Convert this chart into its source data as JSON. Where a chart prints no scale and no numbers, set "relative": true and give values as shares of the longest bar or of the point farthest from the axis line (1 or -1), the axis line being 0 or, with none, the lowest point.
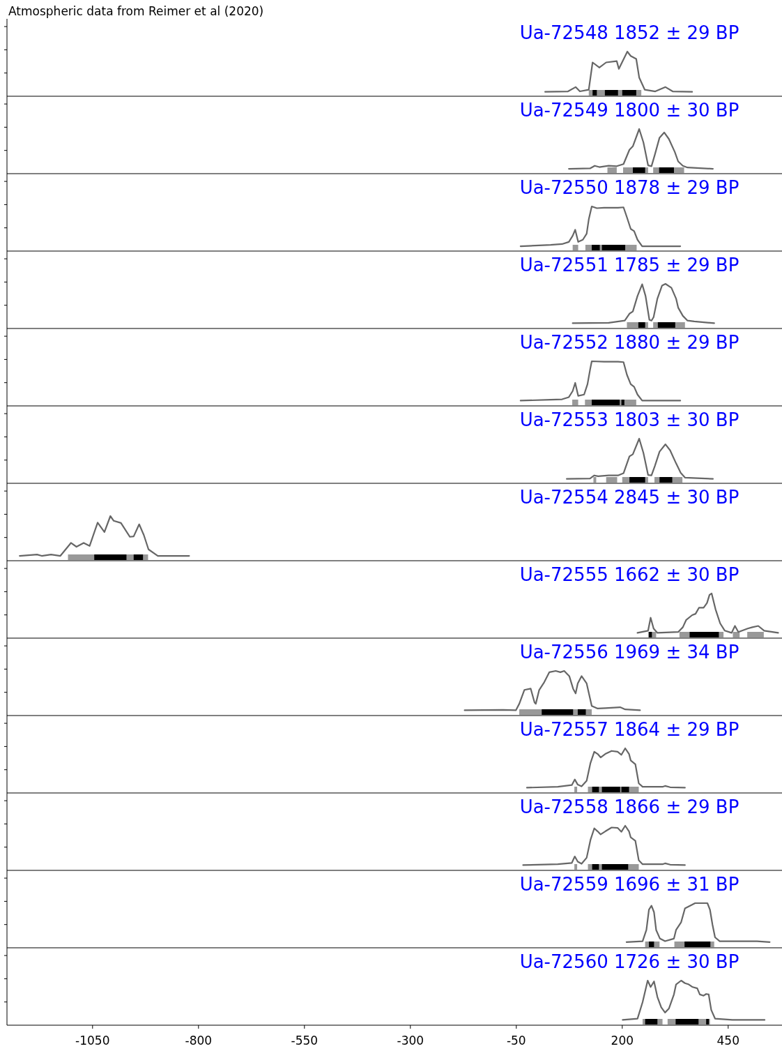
{
  "chart_data": [
    {
      "type": "line",
      "title": "Ua-72548 1852 ± 29 BP",
      "annotations": [
        "Atmospheric data from Reimer et al (2020)"
      ],
      "relative": true,
      "color": "#666666",
      "xlim": [
        -1252,
        577
      ],
      "xticks": [
        -1050,
        -800,
        -550,
        -300,
        -50,
        200,
        450
      ],
      "tick_labels": false,
      "x": [
        18,
        72,
        90,
        100,
        121,
        130,
        146,
        162,
        187,
        192,
        212,
        220,
        233,
        240,
        253,
        278,
        302,
        319,
        365
      ],
      "values": [
        0.07,
        0.08,
        0.18,
        0.08,
        0.12,
        0.75,
        0.63,
        0.75,
        0.78,
        0.6,
        1,
        0.9,
        0.83,
        0.4,
        0.12,
        0.08,
        0.18,
        0.08,
        0.07
      ],
      "bands": [
        {
          "axis": "x",
          "from": 121,
          "to": 245,
          "color": "#999999"
        },
        {
          "axis": "x",
          "from": 130,
          "to": 140,
          "color": "#000000"
        },
        {
          "axis": "x",
          "from": 159,
          "to": 190,
          "color": "#000000"
        },
        {
          "axis": "x",
          "from": 200,
          "to": 233,
          "color": "#000000"
        }
      ]
    },
    {
      "type": "line",
      "title": "Ua-72549 1800 ± 30 BP",
      "relative": true,
      "color": "#666666",
      "xlim": [
        -1252,
        577
      ],
      "xticks": [
        -1050,
        -800,
        -550,
        -300,
        -50,
        200,
        450
      ],
      "tick_labels": false,
      "x": [
        74,
        124,
        135,
        146,
        168,
        187,
        203,
        217,
        225,
        240,
        250,
        261,
        269,
        277,
        288,
        299,
        310,
        324,
        332,
        343,
        354,
        414
      ],
      "values": [
        0.08,
        0.09,
        0.15,
        0.12,
        0.15,
        0.14,
        0.19,
        0.52,
        0.6,
        1,
        0.69,
        0.16,
        0.14,
        0.41,
        0.8,
        0.92,
        0.77,
        0.47,
        0.25,
        0.15,
        0.11,
        0.08
      ],
      "bands": [
        {
          "axis": "x",
          "from": 165,
          "to": 187,
          "color": "#999999"
        },
        {
          "axis": "x",
          "from": 202,
          "to": 261,
          "color": "#999999"
        },
        {
          "axis": "x",
          "from": 273,
          "to": 346,
          "color": "#999999"
        },
        {
          "axis": "x",
          "from": 225,
          "to": 254,
          "color": "#000000"
        },
        {
          "axis": "x",
          "from": 287,
          "to": 322,
          "color": "#000000"
        }
      ]
    },
    {
      "type": "line",
      "title": "Ua-72550 1878 ± 29 BP",
      "relative": true,
      "color": "#666666",
      "xlim": [
        -1252,
        577
      ],
      "xticks": [
        -1050,
        -800,
        -550,
        -300,
        -50,
        200,
        450
      ],
      "tick_labels": false,
      "x": [
        -40,
        31,
        58,
        74,
        83,
        89,
        96,
        107,
        116,
        121,
        128,
        140,
        157,
        190,
        203,
        211,
        220,
        228,
        236,
        247,
        337
      ],
      "values": [
        0.08,
        0.11,
        0.13,
        0.18,
        0.32,
        0.46,
        0.18,
        0.23,
        0.37,
        0.7,
        1,
        0.96,
        0.97,
        0.97,
        0.98,
        0.75,
        0.48,
        0.43,
        0.23,
        0.08,
        0.08
      ],
      "bands": [
        {
          "axis": "x",
          "from": 83,
          "to": 96,
          "color": "#999999"
        },
        {
          "axis": "x",
          "from": 113,
          "to": 234,
          "color": "#999999"
        },
        {
          "axis": "x",
          "from": 128,
          "to": 147,
          "color": "#000000"
        },
        {
          "axis": "x",
          "from": 152,
          "to": 207,
          "color": "#000000"
        }
      ]
    },
    {
      "type": "line",
      "title": "Ua-72551 1785 ± 29 BP",
      "relative": true,
      "color": "#666666",
      "xlim": [
        -1252,
        577
      ],
      "xticks": [
        -1050,
        -800,
        -550,
        -300,
        -50,
        200,
        450
      ],
      "tick_labels": false,
      "x": [
        83,
        168,
        206,
        217,
        225,
        236,
        247,
        255,
        264,
        269,
        274,
        283,
        294,
        302,
        316,
        327,
        332,
        343,
        354,
        370,
        417
      ],
      "values": [
        0.09,
        0.1,
        0.15,
        0.31,
        0.36,
        0.72,
        0.99,
        0.72,
        0.17,
        0.15,
        0.23,
        0.66,
        0.96,
        1,
        0.91,
        0.66,
        0.45,
        0.26,
        0.15,
        0.13,
        0.09
      ],
      "bands": [
        {
          "axis": "x",
          "from": 211,
          "to": 261,
          "color": "#999999"
        },
        {
          "axis": "x",
          "from": 273,
          "to": 348,
          "color": "#999999"
        },
        {
          "axis": "x",
          "from": 238,
          "to": 254,
          "color": "#000000"
        },
        {
          "axis": "x",
          "from": 284,
          "to": 325,
          "color": "#000000"
        }
      ]
    },
    {
      "type": "line",
      "title": "Ua-72552 1880 ± 29 BP",
      "relative": true,
      "color": "#666666",
      "xlim": [
        -1252,
        577
      ],
      "xticks": [
        -1050,
        -800,
        -550,
        -300,
        -50,
        200,
        450
      ],
      "tick_labels": false,
      "x": [
        -40,
        31,
        58,
        74,
        83,
        89,
        96,
        110,
        118,
        124,
        128,
        157,
        190,
        203,
        211,
        220,
        228,
        236,
        247,
        337
      ],
      "values": [
        0.09,
        0.11,
        0.12,
        0.17,
        0.31,
        0.5,
        0.2,
        0.23,
        0.47,
        0.8,
        1,
        0.99,
        0.99,
        0.98,
        0.69,
        0.47,
        0.41,
        0.23,
        0.09,
        0.09
      ],
      "bands": [
        {
          "axis": "x",
          "from": 82,
          "to": 96,
          "color": "#999999"
        },
        {
          "axis": "x",
          "from": 112,
          "to": 233,
          "color": "#999999"
        },
        {
          "axis": "x",
          "from": 128,
          "to": 194,
          "color": "#000000"
        },
        {
          "axis": "x",
          "from": 198,
          "to": 205,
          "color": "#000000"
        }
      ]
    },
    {
      "type": "line",
      "title": "Ua-72553 1803 ± 30 BP",
      "relative": true,
      "color": "#666666",
      "xlim": [
        -1252,
        577
      ],
      "xticks": [
        -1050,
        -800,
        -550,
        -300,
        -50,
        200,
        450
      ],
      "tick_labels": false,
      "x": [
        69,
        124,
        134,
        143,
        168,
        190,
        203,
        217,
        225,
        240,
        250,
        261,
        269,
        277,
        288,
        302,
        313,
        327,
        338,
        348,
        414
      ],
      "values": [
        0.07,
        0.08,
        0.15,
        0.13,
        0.15,
        0.15,
        0.2,
        0.59,
        0.64,
        1,
        0.67,
        0.16,
        0.15,
        0.37,
        0.7,
        0.87,
        0.73,
        0.43,
        0.21,
        0.1,
        0.07
      ],
      "bands": [
        {
          "axis": "x",
          "from": 132,
          "to": 137,
          "color": "#999999"
        },
        {
          "axis": "x",
          "from": 162,
          "to": 188,
          "color": "#999999"
        },
        {
          "axis": "x",
          "from": 200,
          "to": 261,
          "color": "#999999"
        },
        {
          "axis": "x",
          "from": 276,
          "to": 342,
          "color": "#999999"
        },
        {
          "axis": "x",
          "from": 217,
          "to": 254,
          "color": "#000000"
        },
        {
          "axis": "x",
          "from": 288,
          "to": 318,
          "color": "#000000"
        }
      ]
    },
    {
      "type": "line",
      "title": "Ua-72554 2845 ± 30 BP",
      "relative": true,
      "color": "#666666",
      "xlim": [
        -1252,
        577
      ],
      "xticks": [
        -1050,
        -800,
        -550,
        -300,
        -50,
        200,
        450
      ],
      "tick_labels": false,
      "x": [
        -1222,
        -1181,
        -1170,
        -1148,
        -1126,
        -1101,
        -1088,
        -1071,
        -1057,
        -1038,
        -1022,
        -1008,
        -1000,
        -983,
        -962,
        -953,
        -940,
        -929,
        -918,
        -896,
        -868,
        -822
      ],
      "values": [
        0.08,
        0.11,
        0.08,
        0.11,
        0.08,
        0.38,
        0.29,
        0.38,
        0.31,
        0.85,
        0.63,
        1,
        0.89,
        0.84,
        0.52,
        0.53,
        0.81,
        0.56,
        0.23,
        0.08,
        0.08,
        0.08
      ],
      "bands": [
        {
          "axis": "x",
          "from": -1108,
          "to": -919,
          "color": "#999999"
        },
        {
          "axis": "x",
          "from": -1046,
          "to": -970,
          "color": "#000000"
        },
        {
          "axis": "x",
          "from": -953,
          "to": -931,
          "color": "#000000"
        }
      ]
    },
    {
      "type": "line",
      "title": "Ua-72555 1662 ± 30 BP",
      "relative": true,
      "color": "#666666",
      "xlim": [
        -1252,
        577
      ],
      "xticks": [
        -1050,
        -800,
        -550,
        -300,
        -50,
        200,
        450
      ],
      "tick_labels": false,
      "x": [
        236,
        261,
        267,
        274,
        283,
        332,
        343,
        351,
        365,
        373,
        381,
        392,
        400,
        406,
        411,
        420,
        431,
        442,
        458,
        466,
        474,
        496,
        507,
        521,
        535,
        568
      ],
      "values": [
        0.09,
        0.14,
        0.44,
        0.19,
        0.09,
        0.11,
        0.22,
        0.39,
        0.5,
        0.53,
        0.67,
        0.67,
        0.78,
        0.97,
        1,
        0.64,
        0.31,
        0.14,
        0.09,
        0.25,
        0.11,
        0.19,
        0.22,
        0.25,
        0.14,
        0.09
      ],
      "bands": [
        {
          "axis": "x",
          "from": 261,
          "to": 280,
          "color": "#999999"
        },
        {
          "axis": "x",
          "from": 335,
          "to": 439,
          "color": "#999999"
        },
        {
          "axis": "x",
          "from": 461,
          "to": 477,
          "color": "#999999"
        },
        {
          "axis": "x",
          "from": 495,
          "to": 534,
          "color": "#999999"
        },
        {
          "axis": "x",
          "from": 263,
          "to": 270,
          "color": "#000000"
        },
        {
          "axis": "x",
          "from": 359,
          "to": 428,
          "color": "#000000"
        }
      ]
    },
    {
      "type": "line",
      "title": "Ua-72556 1969 ± 34 BP",
      "relative": true,
      "color": "#666666",
      "xlim": [
        -1252,
        577
      ],
      "xticks": [
        -1050,
        -800,
        -550,
        -300,
        -50,
        200,
        450
      ],
      "tick_labels": false,
      "x": [
        -172,
        -81,
        -51,
        -43,
        -31,
        -16,
        -7,
        -4,
        4,
        16,
        28,
        43,
        54,
        63,
        75,
        84,
        90,
        95,
        104,
        116,
        128,
        142,
        160,
        195,
        207,
        242
      ],
      "values": [
        0.09,
        0.1,
        0.09,
        0.24,
        0.56,
        0.59,
        0.27,
        0.24,
        0.56,
        0.74,
        0.97,
        1,
        0.97,
        1,
        0.88,
        0.59,
        0.48,
        0.71,
        0.88,
        0.71,
        0.19,
        0.13,
        0.14,
        0.16,
        0.11,
        0.09
      ],
      "bands": [
        {
          "axis": "x",
          "from": -43,
          "to": 128,
          "color": "#999999"
        },
        {
          "axis": "x",
          "from": 10,
          "to": 84,
          "color": "#000000"
        },
        {
          "axis": "x",
          "from": 95,
          "to": 114,
          "color": "#000000"
        }
      ]
    },
    {
      "type": "line",
      "title": "Ua-72557 1864 ± 29 BP",
      "relative": true,
      "color": "#666666",
      "xlim": [
        -1252,
        577
      ],
      "xticks": [
        -1050,
        -800,
        -550,
        -300,
        -50,
        200,
        450
      ],
      "tick_labels": false,
      "x": [
        -25,
        48,
        81,
        88,
        95,
        104,
        116,
        125,
        134,
        142,
        149,
        160,
        175,
        189,
        198,
        207,
        216,
        220,
        231,
        239,
        248,
        295,
        301,
        313,
        348
      ],
      "values": [
        0.09,
        0.11,
        0.15,
        0.28,
        0.16,
        0.12,
        0.25,
        0.66,
        0.92,
        0.87,
        0.79,
        0.87,
        0.94,
        0.92,
        0.85,
        1,
        0.87,
        0.72,
        0.63,
        0.19,
        0.11,
        0.11,
        0.13,
        0.1,
        0.09
      ],
      "bands": [
        {
          "axis": "x",
          "from": 87,
          "to": 92,
          "color": "#999999"
        },
        {
          "axis": "x",
          "from": 119,
          "to": 239,
          "color": "#999999"
        },
        {
          "axis": "x",
          "from": 129,
          "to": 145,
          "color": "#000000"
        },
        {
          "axis": "x",
          "from": 152,
          "to": 195,
          "color": "#000000"
        },
        {
          "axis": "x",
          "from": 198,
          "to": 216,
          "color": "#000000"
        }
      ]
    },
    {
      "type": "line",
      "title": "Ua-72558 1866 ± 29 BP",
      "relative": true,
      "color": "#666666",
      "xlim": [
        -1252,
        577
      ],
      "xticks": [
        -1050,
        -800,
        -550,
        -300,
        -50,
        200,
        450
      ],
      "tick_labels": false,
      "x": [
        -34,
        48,
        81,
        88,
        95,
        104,
        116,
        125,
        134,
        142,
        149,
        160,
        175,
        189,
        198,
        207,
        216,
        220,
        231,
        239,
        248,
        295,
        301,
        313,
        348
      ],
      "values": [
        0.09,
        0.11,
        0.14,
        0.29,
        0.17,
        0.12,
        0.26,
        0.67,
        0.94,
        0.87,
        0.8,
        0.87,
        0.96,
        0.95,
        0.86,
        1,
        0.87,
        0.73,
        0.65,
        0.2,
        0.11,
        0.11,
        0.13,
        0.1,
        0.09
      ],
      "bands": [
        {
          "axis": "x",
          "from": 87,
          "to": 92,
          "color": "#999999"
        },
        {
          "axis": "x",
          "from": 119,
          "to": 239,
          "color": "#999999"
        },
        {
          "axis": "x",
          "from": 129,
          "to": 145,
          "color": "#000000"
        },
        {
          "axis": "x",
          "from": 152,
          "to": 214,
          "color": "#000000"
        }
      ]
    },
    {
      "type": "line",
      "title": "Ua-72559 1696 ± 31 BP",
      "relative": true,
      "color": "#666666",
      "xlim": [
        -1252,
        577
      ],
      "xticks": [
        -1050,
        -800,
        -550,
        -300,
        -50,
        200,
        450
      ],
      "tick_labels": false,
      "x": [
        210,
        248,
        257,
        263,
        269,
        275,
        280,
        289,
        301,
        322,
        327,
        339,
        348,
        360,
        372,
        401,
        407,
        413,
        419,
        430,
        489,
        518,
        548
      ],
      "values": [
        0.1,
        0.12,
        0.38,
        0.85,
        0.94,
        0.79,
        0.38,
        0.18,
        0.12,
        0.18,
        0.38,
        0.56,
        0.88,
        0.94,
        1,
        1,
        0.85,
        0.5,
        0.21,
        0.12,
        0.12,
        0.12,
        0.1
      ],
      "bands": [
        {
          "axis": "x",
          "from": 254,
          "to": 288,
          "color": "#999999"
        },
        {
          "axis": "x",
          "from": 323,
          "to": 417,
          "color": "#999999"
        },
        {
          "axis": "x",
          "from": 263,
          "to": 275,
          "color": "#000000"
        },
        {
          "axis": "x",
          "from": 347,
          "to": 408,
          "color": "#000000"
        }
      ]
    },
    {
      "type": "line",
      "title": "Ua-72560 1726 ± 30 BP",
      "relative": true,
      "color": "#666666",
      "xlim": [
        -1252,
        577
      ],
      "xticks": [
        -1050,
        -800,
        -550,
        -300,
        -50,
        200,
        450
      ],
      "tick_labels": "x",
      "x": [
        201,
        236,
        248,
        260,
        267,
        275,
        283,
        292,
        301,
        310,
        322,
        327,
        339,
        348,
        357,
        366,
        377,
        383,
        392,
        398,
        404,
        410,
        419,
        460,
        536
      ],
      "values": [
        0.09,
        0.12,
        0.5,
        1,
        0.85,
        0.98,
        0.62,
        0.38,
        0.26,
        0.35,
        0.68,
        0.91,
        1,
        0.94,
        0.91,
        0.85,
        0.82,
        0.68,
        0.65,
        0.69,
        0.68,
        0.32,
        0.12,
        0.09,
        0.09
      ],
      "bands": [
        {
          "axis": "x",
          "from": 248,
          "to": 295,
          "color": "#999999"
        },
        {
          "axis": "x",
          "from": 307,
          "to": 407,
          "color": "#999999"
        },
        {
          "axis": "x",
          "from": 254,
          "to": 283,
          "color": "#000000"
        },
        {
          "axis": "x",
          "from": 326,
          "to": 380,
          "color": "#000000"
        },
        {
          "axis": "x",
          "from": 398,
          "to": 401,
          "color": "#000000"
        }
      ]
    }
  ]
}
